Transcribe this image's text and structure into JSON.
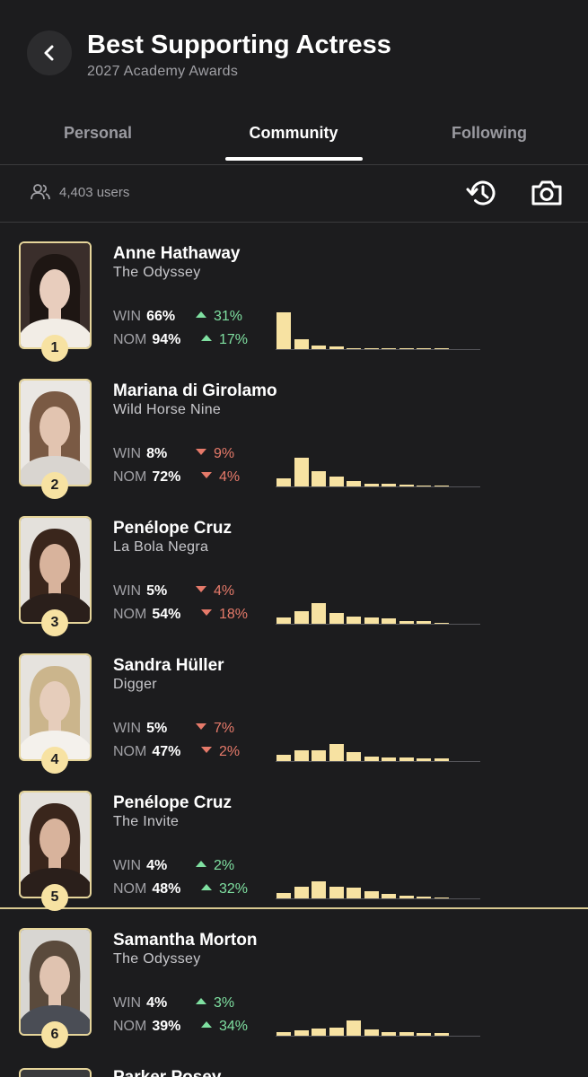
{
  "header": {
    "title": "Best Supporting Actress",
    "subtitle": "2027 Academy Awards"
  },
  "tabs": [
    {
      "label": "Personal",
      "active": false
    },
    {
      "label": "Community",
      "active": true
    },
    {
      "label": "Following",
      "active": false
    }
  ],
  "stats": {
    "users_label": "4,403 users",
    "icons": [
      "users-icon",
      "history-icon",
      "camera-icon"
    ]
  },
  "colors": {
    "background": "#1c1c1e",
    "accent_bar": "#f7e2a2",
    "up": "#7fe0a1",
    "down": "#e67a6a"
  },
  "win_label": "WIN",
  "nom_label": "NOM",
  "nominees": [
    {
      "rank": "1",
      "name": "Anne Hathaway",
      "film": "The Odyssey",
      "win": "66%",
      "win_delta": "31%",
      "win_dir": "up",
      "nom": "94%",
      "nom_delta": "17%",
      "nom_dir": "up",
      "distribution": [
        0.66,
        0.17,
        0.07,
        0.04,
        0.02,
        0.015,
        0.01,
        0.01,
        0.005,
        0.005
      ],
      "photo": {
        "bg": "#3a2e2b",
        "hair": "#1e1613",
        "skin": "#e8cdbd",
        "clothes": "#f2ede6"
      }
    },
    {
      "rank": "2",
      "name": "Mariana di Girolamo",
      "film": "Wild Horse Nine",
      "win": "8%",
      "win_delta": "9%",
      "win_dir": "down",
      "nom": "72%",
      "nom_delta": "4%",
      "nom_dir": "down",
      "distribution": [
        0.14,
        0.51,
        0.27,
        0.17,
        0.09,
        0.05,
        0.04,
        0.03,
        0.02,
        0.01
      ],
      "photo": {
        "bg": "#eae7e3",
        "hair": "#7a5a44",
        "skin": "#e2c4b0",
        "clothes": "#d9d5d0"
      }
    },
    {
      "rank": "3",
      "name": "Penélope Cruz",
      "film": "La Bola Negra",
      "win": "5%",
      "win_delta": "4%",
      "win_dir": "down",
      "nom": "54%",
      "nom_delta": "18%",
      "nom_dir": "down",
      "distribution": [
        0.11,
        0.23,
        0.37,
        0.19,
        0.13,
        0.11,
        0.09,
        0.05,
        0.04,
        0.02
      ],
      "photo": {
        "bg": "#e4e1dc",
        "hair": "#3a261c",
        "skin": "#d8b39c",
        "clothes": "#2a1f1b"
      }
    },
    {
      "rank": "4",
      "name": "Sandra Hüller",
      "film": "Digger",
      "win": "5%",
      "win_delta": "7%",
      "win_dir": "down",
      "nom": "47%",
      "nom_delta": "2%",
      "nom_dir": "down",
      "distribution": [
        0.11,
        0.19,
        0.19,
        0.31,
        0.16,
        0.08,
        0.06,
        0.06,
        0.05,
        0.05
      ],
      "photo": {
        "bg": "#e6e3de",
        "hair": "#cbb58c",
        "skin": "#e6cdbb",
        "clothes": "#f4f1ec"
      }
    },
    {
      "rank": "5",
      "name": "Penélope Cruz",
      "film": "The Invite",
      "win": "4%",
      "win_delta": "2%",
      "win_dir": "up",
      "nom": "48%",
      "nom_delta": "32%",
      "nom_dir": "up",
      "distribution": [
        0.09,
        0.21,
        0.31,
        0.21,
        0.19,
        0.12,
        0.08,
        0.05,
        0.03,
        0.02
      ],
      "photo": {
        "bg": "#e4e1dc",
        "hair": "#3a261c",
        "skin": "#d8b39c",
        "clothes": "#2a1f1b"
      }
    },
    {
      "rank": "6",
      "name": "Samantha Morton",
      "film": "The Odyssey",
      "win": "4%",
      "win_delta": "3%",
      "win_dir": "up",
      "nom": "39%",
      "nom_delta": "34%",
      "nom_dir": "up",
      "distribution": [
        0.07,
        0.09,
        0.13,
        0.15,
        0.27,
        0.11,
        0.07,
        0.07,
        0.05,
        0.05
      ],
      "photo": {
        "bg": "#d8d6d2",
        "hair": "#5a4a3c",
        "skin": "#e0c3b0",
        "clothes": "#4a4d55"
      }
    }
  ],
  "next_partial_name": "Parker Posey"
}
